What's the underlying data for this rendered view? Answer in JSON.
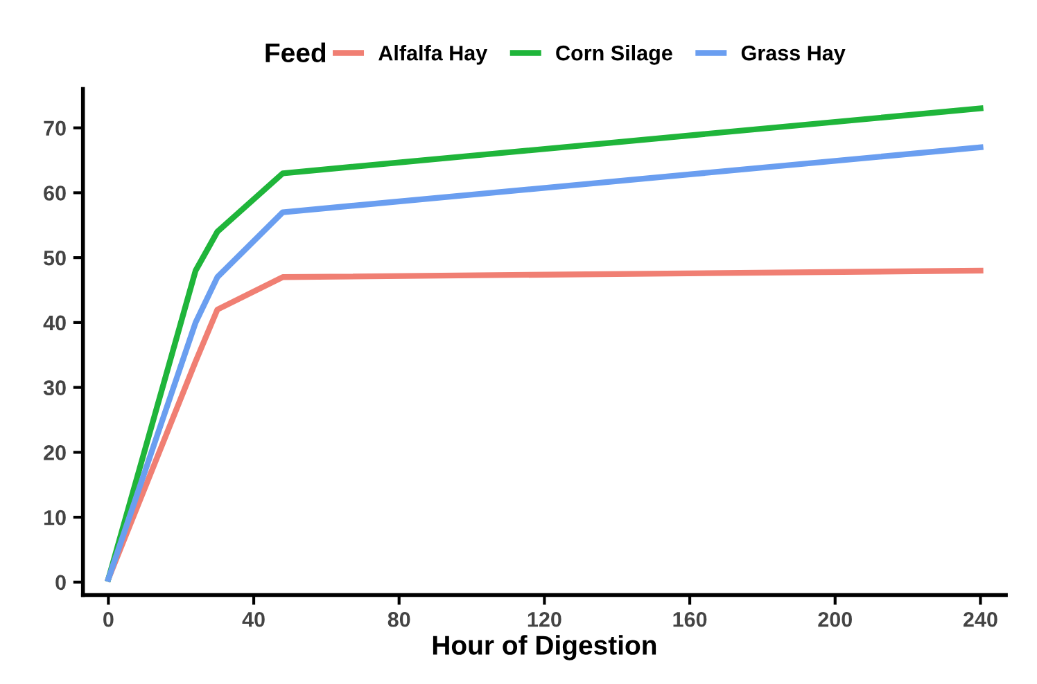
{
  "chart_data": {
    "type": "line",
    "xlabel": "Hour of Digestion",
    "legend_title": "Feed",
    "legend": "top",
    "x": [
      0,
      24,
      30,
      48,
      240
    ],
    "series": [
      {
        "name": "Alfalfa Hay",
        "color": "#f07f73",
        "values": [
          0.5,
          34,
          42,
          47,
          48
        ]
      },
      {
        "name": "Corn Silage",
        "color": "#1fb53a",
        "values": [
          0.5,
          48,
          54,
          63,
          73
        ]
      },
      {
        "name": "Grass Hay",
        "color": "#6a9ef0",
        "values": [
          0.5,
          40,
          47,
          57,
          67
        ]
      }
    ],
    "xlim": [
      -7,
      247
    ],
    "ylim": [
      -2,
      76
    ],
    "xticks": [
      0,
      40,
      80,
      120,
      160,
      200,
      240
    ],
    "yticks": [
      0,
      10,
      20,
      30,
      40,
      50,
      60,
      70
    ],
    "grid": false,
    "marker": "none",
    "line_style": "solid"
  }
}
